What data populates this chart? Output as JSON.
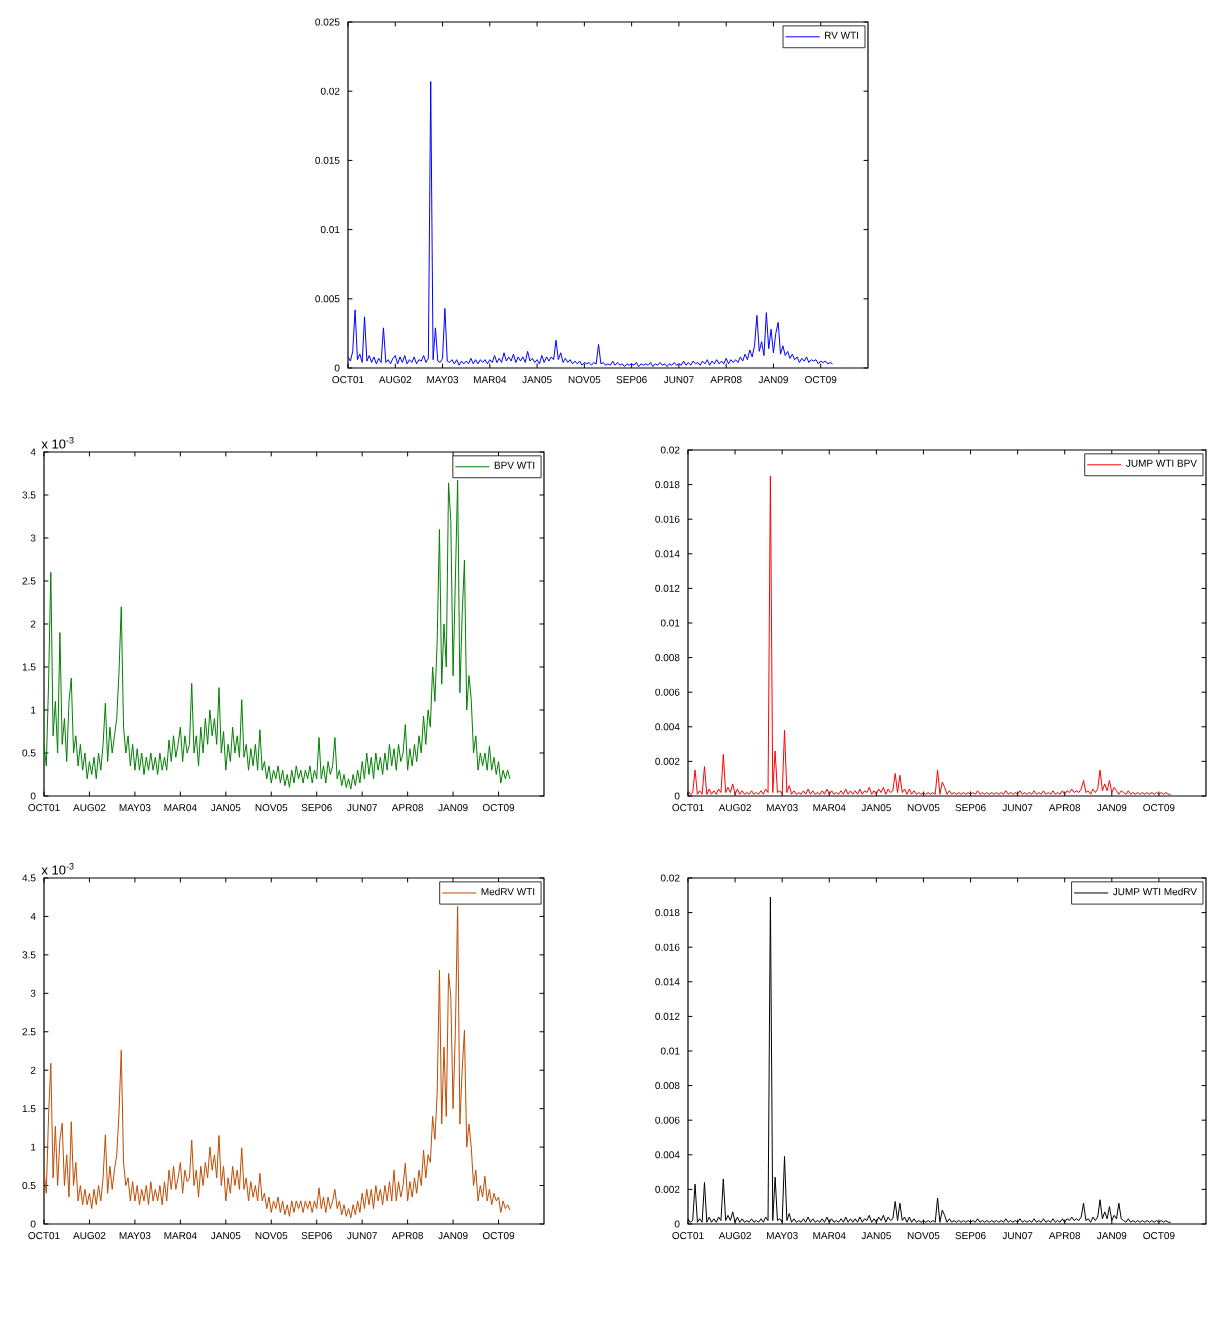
{
  "chart_data": [
    {
      "type": "line",
      "categories": [
        "OCT01",
        null,
        null,
        null,
        null,
        null,
        null,
        null,
        null,
        null,
        null,
        null,
        null,
        null,
        null,
        null,
        null,
        null,
        null,
        null,
        "AUG02",
        null,
        null,
        null,
        null,
        null,
        null,
        null,
        null,
        null,
        null,
        null,
        null,
        null,
        null,
        null,
        null,
        null,
        null,
        null,
        "MAY03",
        null,
        null,
        null,
        null,
        null,
        null,
        null,
        null,
        null,
        null,
        null,
        null,
        null,
        null,
        null,
        null,
        null,
        null,
        null,
        "MAR04",
        null,
        null,
        null,
        null,
        null,
        null,
        null,
        null,
        null,
        null,
        null,
        null,
        null,
        null,
        null,
        null,
        null,
        null,
        null,
        "JAN05",
        null,
        null,
        null,
        null,
        null,
        null,
        null,
        null,
        null,
        null,
        null,
        null,
        null,
        null,
        null,
        null,
        null,
        null,
        null,
        "NOV05",
        null,
        null,
        null,
        null,
        null,
        null,
        null,
        null,
        null,
        null,
        null,
        null,
        null,
        null,
        null,
        null,
        null,
        null,
        null,
        "SEP06",
        null,
        null,
        null,
        null,
        null,
        null,
        null,
        null,
        null,
        null,
        null,
        null,
        null,
        null,
        null,
        null,
        null,
        null,
        null,
        "JUN07",
        null,
        null,
        null,
        null,
        null,
        null,
        null,
        null,
        null,
        null,
        null,
        null,
        null,
        null,
        null,
        null,
        null,
        null,
        null,
        "APR08",
        null,
        null,
        null,
        null,
        null,
        null,
        null,
        null,
        null,
        null,
        null,
        null,
        null,
        null,
        null,
        null,
        null,
        null,
        null,
        "JAN09",
        null,
        null,
        null,
        null,
        null,
        null,
        null,
        null,
        null,
        null,
        null,
        null,
        null,
        null,
        null,
        null,
        null,
        null,
        null,
        "OCT09",
        null,
        null,
        null,
        null,
        null,
        null,
        null,
        null,
        null,
        null,
        null,
        null,
        null,
        null,
        null,
        null,
        null,
        null,
        null,
        null
      ],
      "series": [
        {
          "name": "RV WTI",
          "color": "#0000ff",
          "values": [
            0.0008,
            0.0005,
            0.0012,
            0.0042,
            0.0006,
            0.001,
            0.0004,
            0.0037,
            0.0005,
            0.0009,
            0.0004,
            0.0008,
            0.0003,
            0.0007,
            0.0004,
            0.0029,
            0.0004,
            0.0006,
            0.0003,
            0.0007,
            0.0009,
            0.0003,
            0.0008,
            0.0004,
            0.0009,
            0.0003,
            0.0006,
            0.0004,
            0.0008,
            0.0003,
            0.0006,
            0.0005,
            0.0009,
            0.0004,
            0.0007,
            0.0207,
            0.0006,
            0.0029,
            0.0005,
            0.0004,
            0.0007,
            0.0043,
            0.0005,
            0.0004,
            0.0006,
            0.0003,
            0.0006,
            0.0002,
            0.0005,
            0.0003,
            0.0005,
            0.0003,
            0.0007,
            0.0003,
            0.0006,
            0.0003,
            0.0006,
            0.0004,
            0.0006,
            0.0003,
            0.0006,
            0.0004,
            0.0009,
            0.0004,
            0.0007,
            0.0004,
            0.0011,
            0.0005,
            0.0008,
            0.0005,
            0.001,
            0.0004,
            0.0008,
            0.0005,
            0.0008,
            0.0004,
            0.0012,
            0.0005,
            0.0007,
            0.0004,
            0.0006,
            0.0003,
            0.0009,
            0.0004,
            0.0008,
            0.0005,
            0.0008,
            0.0006,
            0.002,
            0.0006,
            0.0011,
            0.0004,
            0.0007,
            0.0004,
            0.0006,
            0.0003,
            0.0005,
            0.0003,
            0.0005,
            0.0002,
            0.0004,
            0.0003,
            0.0004,
            0.0002,
            0.0004,
            0.0003,
            0.0017,
            0.0003,
            0.0004,
            0.0002,
            0.0003,
            0.0002,
            0.0005,
            0.0002,
            0.0004,
            0.0002,
            0.0003,
            0.0001,
            0.0003,
            0.0002,
            0.0003,
            0.0002,
            0.0004,
            0.0001,
            0.0003,
            0.0002,
            0.0003,
            0.0002,
            0.0004,
            0.0001,
            0.0003,
            0.0002,
            0.0004,
            0.0002,
            0.0003,
            0.0001,
            0.0003,
            0.0002,
            0.0004,
            0.0002,
            0.0003,
            0.0002,
            0.0005,
            0.0002,
            0.0004,
            0.0002,
            0.0005,
            0.0003,
            0.0004,
            0.0002,
            0.0005,
            0.0003,
            0.0006,
            0.0002,
            0.0005,
            0.0003,
            0.0006,
            0.0003,
            0.0005,
            0.0003,
            0.0007,
            0.0003,
            0.0006,
            0.0004,
            0.0006,
            0.0004,
            0.0008,
            0.0005,
            0.001,
            0.0006,
            0.0013,
            0.0008,
            0.0016,
            0.0038,
            0.0012,
            0.0019,
            0.0009,
            0.004,
            0.0014,
            0.0028,
            0.0011,
            0.0025,
            0.0033,
            0.001,
            0.0016,
            0.0009,
            0.0012,
            0.0007,
            0.001,
            0.0006,
            0.0008,
            0.0004,
            0.0007,
            0.0005,
            0.0008,
            0.0004,
            0.0006,
            0.0005,
            0.0006,
            0.0003,
            0.0005,
            0.0004,
            0.0005,
            0.0003,
            0.0004,
            0.0003,
            null,
            null,
            null,
            null,
            null,
            null,
            null,
            null,
            null,
            null,
            null,
            null,
            null,
            null,
            null
          ]
        }
      ],
      "ylim": [
        0,
        0.025
      ],
      "yticks": [
        0,
        0.005,
        0.01,
        0.015,
        0.02,
        0.025
      ],
      "legend": "top right"
    },
    {
      "type": "line",
      "categories": [
        "OCT01",
        null,
        null,
        null,
        null,
        null,
        null,
        null,
        null,
        null,
        null,
        null,
        null,
        null,
        null,
        null,
        null,
        null,
        null,
        null,
        "AUG02",
        null,
        null,
        null,
        null,
        null,
        null,
        null,
        null,
        null,
        null,
        null,
        null,
        null,
        null,
        null,
        null,
        null,
        null,
        null,
        "MAY03",
        null,
        null,
        null,
        null,
        null,
        null,
        null,
        null,
        null,
        null,
        null,
        null,
        null,
        null,
        null,
        null,
        null,
        null,
        null,
        "MAR04",
        null,
        null,
        null,
        null,
        null,
        null,
        null,
        null,
        null,
        null,
        null,
        null,
        null,
        null,
        null,
        null,
        null,
        null,
        null,
        "JAN05",
        null,
        null,
        null,
        null,
        null,
        null,
        null,
        null,
        null,
        null,
        null,
        null,
        null,
        null,
        null,
        null,
        null,
        null,
        null,
        "NOV05",
        null,
        null,
        null,
        null,
        null,
        null,
        null,
        null,
        null,
        null,
        null,
        null,
        null,
        null,
        null,
        null,
        null,
        null,
        null,
        "SEP06",
        null,
        null,
        null,
        null,
        null,
        null,
        null,
        null,
        null,
        null,
        null,
        null,
        null,
        null,
        null,
        null,
        null,
        null,
        null,
        "JUN07",
        null,
        null,
        null,
        null,
        null,
        null,
        null,
        null,
        null,
        null,
        null,
        null,
        null,
        null,
        null,
        null,
        null,
        null,
        null,
        "APR08",
        null,
        null,
        null,
        null,
        null,
        null,
        null,
        null,
        null,
        null,
        null,
        null,
        null,
        null,
        null,
        null,
        null,
        null,
        null,
        "JAN09",
        null,
        null,
        null,
        null,
        null,
        null,
        null,
        null,
        null,
        null,
        null,
        null,
        null,
        null,
        null,
        null,
        null,
        null,
        null,
        "OCT09",
        null,
        null,
        null,
        null,
        null,
        null,
        null,
        null,
        null,
        null,
        null,
        null,
        null,
        null,
        null,
        null,
        null,
        null,
        null,
        null
      ],
      "series": [
        {
          "name": "BPV WTI",
          "color": "#008000",
          "values": [
            0.6,
            0.35,
            1.3,
            2.6,
            0.7,
            1.1,
            0.5,
            1.9,
            0.6,
            0.9,
            0.4,
            1.1,
            1.37,
            0.5,
            0.7,
            0.35,
            0.6,
            0.3,
            0.5,
            0.2,
            0.4,
            0.25,
            0.45,
            0.2,
            0.5,
            0.3,
            0.6,
            1.08,
            0.4,
            0.8,
            0.5,
            0.7,
            0.9,
            1.44,
            2.2,
            0.8,
            0.5,
            0.7,
            0.35,
            0.6,
            0.3,
            0.55,
            0.3,
            0.5,
            0.25,
            0.45,
            0.3,
            0.5,
            0.3,
            0.45,
            0.25,
            0.5,
            0.3,
            0.45,
            0.3,
            0.65,
            0.4,
            0.7,
            0.45,
            0.6,
            0.8,
            0.4,
            0.7,
            0.5,
            0.6,
            1.31,
            0.5,
            0.7,
            0.35,
            0.8,
            0.5,
            0.9,
            0.6,
            1.0,
            0.7,
            0.9,
            0.6,
            1.26,
            0.5,
            0.75,
            0.3,
            0.6,
            0.4,
            0.8,
            0.5,
            0.7,
            0.45,
            1.12,
            0.45,
            0.6,
            0.3,
            0.55,
            0.35,
            0.6,
            0.3,
            0.77,
            0.3,
            0.4,
            0.2,
            0.35,
            0.15,
            0.3,
            0.2,
            0.35,
            0.15,
            0.3,
            0.12,
            0.25,
            0.1,
            0.3,
            0.15,
            0.35,
            0.2,
            0.3,
            0.15,
            0.3,
            0.2,
            0.35,
            0.15,
            0.3,
            0.2,
            0.68,
            0.2,
            0.35,
            0.15,
            0.4,
            0.25,
            0.35,
            0.68,
            0.2,
            0.3,
            0.12,
            0.25,
            0.1,
            0.2,
            0.08,
            0.25,
            0.12,
            0.3,
            0.15,
            0.4,
            0.2,
            0.5,
            0.25,
            0.45,
            0.2,
            0.5,
            0.3,
            0.45,
            0.25,
            0.5,
            0.3,
            0.6,
            0.35,
            0.55,
            0.3,
            0.6,
            0.4,
            0.5,
            0.83,
            0.3,
            0.55,
            0.35,
            0.6,
            0.4,
            0.7,
            0.5,
            0.93,
            0.6,
            1.0,
            0.8,
            1.5,
            1.1,
            1.8,
            3.1,
            1.3,
            2.0,
            1.5,
            3.64,
            3.2,
            1.4,
            2.5,
            3.67,
            1.2,
            2.1,
            2.74,
            1.0,
            1.4,
            1.12,
            0.5,
            0.7,
            0.3,
            0.5,
            0.35,
            0.5,
            0.3,
            0.58,
            0.3,
            0.45,
            0.25,
            0.4,
            0.15,
            0.3,
            0.2,
            0.3,
            0.2,
            null,
            null,
            null,
            null,
            null,
            null,
            null,
            null,
            null,
            null,
            null,
            null,
            null,
            null,
            null
          ]
        }
      ],
      "ylim": [
        0,
        4
      ],
      "yticks": [
        0,
        0.5,
        1,
        1.5,
        2,
        2.5,
        3,
        3.5,
        4
      ],
      "legend": "top right",
      "annotations": [
        "x 10$^{-3}$"
      ]
    },
    {
      "type": "line",
      "categories": [
        "OCT01",
        null,
        null,
        null,
        null,
        null,
        null,
        null,
        null,
        null,
        null,
        null,
        null,
        null,
        null,
        null,
        null,
        null,
        null,
        null,
        "AUG02",
        null,
        null,
        null,
        null,
        null,
        null,
        null,
        null,
        null,
        null,
        null,
        null,
        null,
        null,
        null,
        null,
        null,
        null,
        null,
        "MAY03",
        null,
        null,
        null,
        null,
        null,
        null,
        null,
        null,
        null,
        null,
        null,
        null,
        null,
        null,
        null,
        null,
        null,
        null,
        null,
        "MAR04",
        null,
        null,
        null,
        null,
        null,
        null,
        null,
        null,
        null,
        null,
        null,
        null,
        null,
        null,
        null,
        null,
        null,
        null,
        null,
        "JAN05",
        null,
        null,
        null,
        null,
        null,
        null,
        null,
        null,
        null,
        null,
        null,
        null,
        null,
        null,
        null,
        null,
        null,
        null,
        null,
        "NOV05",
        null,
        null,
        null,
        null,
        null,
        null,
        null,
        null,
        null,
        null,
        null,
        null,
        null,
        null,
        null,
        null,
        null,
        null,
        null,
        "SEP06",
        null,
        null,
        null,
        null,
        null,
        null,
        null,
        null,
        null,
        null,
        null,
        null,
        null,
        null,
        null,
        null,
        null,
        null,
        null,
        "JUN07",
        null,
        null,
        null,
        null,
        null,
        null,
        null,
        null,
        null,
        null,
        null,
        null,
        null,
        null,
        null,
        null,
        null,
        null,
        null,
        "APR08",
        null,
        null,
        null,
        null,
        null,
        null,
        null,
        null,
        null,
        null,
        null,
        null,
        null,
        null,
        null,
        null,
        null,
        null,
        null,
        "JAN09",
        null,
        null,
        null,
        null,
        null,
        null,
        null,
        null,
        null,
        null,
        null,
        null,
        null,
        null,
        null,
        null,
        null,
        null,
        null,
        "OCT09",
        null,
        null,
        null,
        null,
        null,
        null,
        null,
        null,
        null,
        null,
        null,
        null,
        null,
        null,
        null,
        null,
        null,
        null,
        null,
        null
      ],
      "series": [
        {
          "name": "JUMP WTI BPV",
          "color": "#ff0000",
          "values": [
            0.0003,
            0.0001,
            0.0002,
            0.0015,
            0.0001,
            0.0003,
            0.0001,
            0.0017,
            0.0001,
            0.0004,
            0.0001,
            0.0003,
            0.0001,
            0.0004,
            0.0002,
            0.0024,
            0.0002,
            0.0005,
            0.0002,
            0.0007,
            0.0001,
            0.0004,
            0.0001,
            0.0003,
            0.0001,
            0.0002,
            0.0001,
            0.0003,
            0.0001,
            0.0002,
            0.0001,
            0.0003,
            0.0001,
            0.0004,
            0.0002,
            0.0185,
            0.0002,
            0.0026,
            0.0002,
            0.0003,
            0.0001,
            0.0038,
            0.0002,
            0.0006,
            0.0001,
            0.0003,
            0.0001,
            0.0002,
            0.0001,
            0.0003,
            0.0001,
            0.0004,
            0.0001,
            0.0003,
            0.0001,
            0.0002,
            0.0001,
            0.0003,
            0.0001,
            0.0004,
            0.0001,
            0.0003,
            0.0001,
            0.0002,
            0.0001,
            0.0003,
            0.0001,
            0.0004,
            0.0001,
            0.0003,
            0.0001,
            0.0003,
            0.0001,
            0.0004,
            0.0001,
            0.0003,
            0.0002,
            0.0005,
            0.0001,
            0.0003,
            0.0001,
            0.0004,
            0.0002,
            0.0005,
            0.0001,
            0.0004,
            0.0002,
            0.0003,
            0.0013,
            0.0002,
            0.0012,
            0.0002,
            0.0004,
            0.0001,
            0.0004,
            0.0001,
            0.0003,
            0.0001,
            0.0002,
            0.0001,
            0.0002,
            0.0001,
            0.0002,
            0.0001,
            0.0002,
            0.0001,
            0.0015,
            0.0001,
            0.0008,
            0.0005,
            0.0001,
            0.0003,
            0.0001,
            0.0002,
            0.0001,
            0.0002,
            0.0001,
            0.0002,
            0.0001,
            0.0002,
            0.0001,
            0.0002,
            0.0001,
            0.0003,
            0.0001,
            0.0002,
            0.0001,
            0.0002,
            0.0001,
            0.0002,
            0.0001,
            0.0002,
            0.0001,
            0.0002,
            0.0001,
            0.0003,
            0.0001,
            0.0002,
            0.0001,
            0.0002,
            0.0001,
            0.0003,
            0.0001,
            0.0002,
            0.0001,
            0.0002,
            0.0001,
            0.0003,
            0.0001,
            0.0002,
            0.0001,
            0.0003,
            0.0001,
            0.0002,
            0.0001,
            0.0003,
            0.0001,
            0.0002,
            0.0001,
            0.0003,
            0.0001,
            0.0003,
            0.0002,
            0.0004,
            0.0002,
            0.0003,
            0.0002,
            0.0004,
            0.0009,
            0.0002,
            0.0003,
            0.0001,
            0.0004,
            0.0002,
            0.0004,
            0.0015,
            0.0003,
            0.0007,
            0.0003,
            0.0009,
            0.0002,
            0.0005,
            0.0003,
            0.0001,
            0.0003,
            0.0002,
            0.0001,
            0.0003,
            0.0001,
            0.0002,
            0.0001,
            0.0002,
            0.0001,
            0.0002,
            0.0001,
            0.0002,
            0.0001,
            0.0002,
            0.0001,
            0.0002,
            0.0001,
            0.0002,
            0.0001,
            0.0002,
            0.0001,
            0.0001,
            null,
            null,
            null,
            null,
            null,
            null,
            null,
            null,
            null,
            null,
            null,
            null,
            null,
            null,
            null
          ]
        }
      ],
      "ylim": [
        0,
        0.02
      ],
      "yticks": [
        0,
        0.002,
        0.004,
        0.006,
        0.008,
        0.01,
        0.012,
        0.014,
        0.016,
        0.018,
        0.02
      ],
      "legend": "top right"
    },
    {
      "type": "line",
      "categories": [
        "OCT01",
        null,
        null,
        null,
        null,
        null,
        null,
        null,
        null,
        null,
        null,
        null,
        null,
        null,
        null,
        null,
        null,
        null,
        null,
        null,
        "AUG02",
        null,
        null,
        null,
        null,
        null,
        null,
        null,
        null,
        null,
        null,
        null,
        null,
        null,
        null,
        null,
        null,
        null,
        null,
        null,
        "MAY03",
        null,
        null,
        null,
        null,
        null,
        null,
        null,
        null,
        null,
        null,
        null,
        null,
        null,
        null,
        null,
        null,
        null,
        null,
        null,
        "MAR04",
        null,
        null,
        null,
        null,
        null,
        null,
        null,
        null,
        null,
        null,
        null,
        null,
        null,
        null,
        null,
        null,
        null,
        null,
        null,
        "JAN05",
        null,
        null,
        null,
        null,
        null,
        null,
        null,
        null,
        null,
        null,
        null,
        null,
        null,
        null,
        null,
        null,
        null,
        null,
        null,
        "NOV05",
        null,
        null,
        null,
        null,
        null,
        null,
        null,
        null,
        null,
        null,
        null,
        null,
        null,
        null,
        null,
        null,
        null,
        null,
        null,
        "SEP06",
        null,
        null,
        null,
        null,
        null,
        null,
        null,
        null,
        null,
        null,
        null,
        null,
        null,
        null,
        null,
        null,
        null,
        null,
        null,
        "JUN07",
        null,
        null,
        null,
        null,
        null,
        null,
        null,
        null,
        null,
        null,
        null,
        null,
        null,
        null,
        null,
        null,
        null,
        null,
        null,
        "APR08",
        null,
        null,
        null,
        null,
        null,
        null,
        null,
        null,
        null,
        null,
        null,
        null,
        null,
        null,
        null,
        null,
        null,
        null,
        null,
        "JAN09",
        null,
        null,
        null,
        null,
        null,
        null,
        null,
        null,
        null,
        null,
        null,
        null,
        null,
        null,
        null,
        null,
        null,
        null,
        null,
        "OCT09",
        null,
        null,
        null,
        null,
        null,
        null,
        null,
        null,
        null,
        null,
        null,
        null,
        null,
        null,
        null,
        null,
        null,
        null,
        null,
        null
      ],
      "series": [
        {
          "name": "MedRV WTI",
          "color": "#c04a00",
          "values": [
            0.7,
            0.4,
            1.4,
            2.09,
            0.6,
            1.27,
            0.5,
            1.1,
            1.31,
            0.5,
            0.9,
            0.35,
            1.33,
            0.5,
            0.8,
            0.3,
            0.5,
            0.25,
            0.45,
            0.25,
            0.4,
            0.2,
            0.45,
            0.25,
            0.5,
            0.3,
            0.6,
            1.16,
            0.4,
            0.75,
            0.45,
            0.7,
            0.9,
            1.44,
            2.26,
            0.8,
            0.5,
            0.6,
            0.3,
            0.55,
            0.3,
            0.5,
            0.25,
            0.45,
            0.3,
            0.5,
            0.25,
            0.55,
            0.3,
            0.45,
            0.3,
            0.5,
            0.25,
            0.55,
            0.3,
            0.7,
            0.45,
            0.75,
            0.45,
            0.6,
            0.8,
            0.4,
            0.7,
            0.55,
            0.6,
            1.09,
            0.5,
            0.7,
            0.35,
            0.75,
            0.5,
            0.8,
            0.6,
            1.0,
            0.7,
            0.9,
            0.6,
            1.15,
            0.5,
            0.75,
            0.3,
            0.6,
            0.4,
            0.75,
            0.5,
            0.7,
            0.45,
            0.99,
            0.45,
            0.6,
            0.3,
            0.55,
            0.35,
            0.5,
            0.3,
            0.66,
            0.3,
            0.4,
            0.2,
            0.35,
            0.15,
            0.3,
            0.2,
            0.35,
            0.15,
            0.3,
            0.12,
            0.25,
            0.1,
            0.3,
            0.15,
            0.3,
            0.2,
            0.3,
            0.15,
            0.3,
            0.2,
            0.3,
            0.15,
            0.3,
            0.2,
            0.47,
            0.2,
            0.35,
            0.15,
            0.35,
            0.2,
            0.3,
            0.45,
            0.2,
            0.3,
            0.12,
            0.25,
            0.1,
            0.2,
            0.08,
            0.25,
            0.12,
            0.3,
            0.15,
            0.4,
            0.2,
            0.45,
            0.25,
            0.45,
            0.2,
            0.5,
            0.3,
            0.45,
            0.25,
            0.5,
            0.3,
            0.55,
            0.3,
            0.7,
            0.3,
            0.55,
            0.35,
            0.5,
            0.79,
            0.3,
            0.55,
            0.35,
            0.6,
            0.4,
            0.7,
            0.5,
            0.96,
            0.6,
            0.9,
            0.8,
            1.4,
            1.1,
            1.7,
            3.3,
            1.3,
            2.3,
            1.4,
            3.26,
            2.96,
            1.5,
            2.5,
            4.13,
            1.3,
            2.0,
            2.52,
            1.0,
            1.3,
            1.0,
            0.5,
            0.7,
            0.3,
            0.5,
            0.35,
            0.62,
            0.3,
            0.45,
            0.25,
            0.4,
            0.3,
            0.35,
            0.15,
            0.3,
            0.2,
            0.25,
            0.18,
            null,
            null,
            null,
            null,
            null,
            null,
            null,
            null,
            null,
            null,
            null,
            null,
            null,
            null,
            null
          ]
        }
      ],
      "ylim": [
        0,
        4.5
      ],
      "yticks": [
        0,
        0.5,
        1,
        1.5,
        2,
        2.5,
        3,
        3.5,
        4,
        4.5
      ],
      "legend": "top right",
      "annotations": [
        "x 10$^{-3}$"
      ]
    },
    {
      "type": "line",
      "categories": [
        "OCT01",
        null,
        null,
        null,
        null,
        null,
        null,
        null,
        null,
        null,
        null,
        null,
        null,
        null,
        null,
        null,
        null,
        null,
        null,
        null,
        "AUG02",
        null,
        null,
        null,
        null,
        null,
        null,
        null,
        null,
        null,
        null,
        null,
        null,
        null,
        null,
        null,
        null,
        null,
        null,
        null,
        "MAY03",
        null,
        null,
        null,
        null,
        null,
        null,
        null,
        null,
        null,
        null,
        null,
        null,
        null,
        null,
        null,
        null,
        null,
        null,
        null,
        "MAR04",
        null,
        null,
        null,
        null,
        null,
        null,
        null,
        null,
        null,
        null,
        null,
        null,
        null,
        null,
        null,
        null,
        null,
        null,
        null,
        "JAN05",
        null,
        null,
        null,
        null,
        null,
        null,
        null,
        null,
        null,
        null,
        null,
        null,
        null,
        null,
        null,
        null,
        null,
        null,
        null,
        "NOV05",
        null,
        null,
        null,
        null,
        null,
        null,
        null,
        null,
        null,
        null,
        null,
        null,
        null,
        null,
        null,
        null,
        null,
        null,
        null,
        "SEP06",
        null,
        null,
        null,
        null,
        null,
        null,
        null,
        null,
        null,
        null,
        null,
        null,
        null,
        null,
        null,
        null,
        null,
        null,
        null,
        "JUN07",
        null,
        null,
        null,
        null,
        null,
        null,
        null,
        null,
        null,
        null,
        null,
        null,
        null,
        null,
        null,
        null,
        null,
        null,
        null,
        "APR08",
        null,
        null,
        null,
        null,
        null,
        null,
        null,
        null,
        null,
        null,
        null,
        null,
        null,
        null,
        null,
        null,
        null,
        null,
        null,
        "JAN09",
        null,
        null,
        null,
        null,
        null,
        null,
        null,
        null,
        null,
        null,
        null,
        null,
        null,
        null,
        null,
        null,
        null,
        null,
        null,
        "OCT09",
        null,
        null,
        null,
        null,
        null,
        null,
        null,
        null,
        null,
        null,
        null,
        null,
        null,
        null,
        null,
        null,
        null,
        null,
        null,
        null
      ],
      "series": [
        {
          "name": "JUMP WTI MedRV",
          "color": "#000000",
          "values": [
            0.0003,
            0.0001,
            0.0002,
            0.0023,
            0.0001,
            0.0003,
            0.0001,
            0.0024,
            0.0001,
            0.0004,
            0.0001,
            0.0003,
            0.0001,
            0.0004,
            0.0002,
            0.0026,
            0.0002,
            0.0005,
            0.0002,
            0.0007,
            0.0001,
            0.0004,
            0.0001,
            0.0003,
            0.0001,
            0.0002,
            0.0001,
            0.0003,
            0.0001,
            0.0002,
            0.0001,
            0.0003,
            0.0001,
            0.0004,
            0.0002,
            0.0189,
            0.0002,
            0.0027,
            0.0002,
            0.0003,
            0.0001,
            0.0039,
            0.0002,
            0.0006,
            0.0001,
            0.0003,
            0.0001,
            0.0002,
            0.0001,
            0.0003,
            0.0001,
            0.0004,
            0.0001,
            0.0003,
            0.0001,
            0.0002,
            0.0001,
            0.0003,
            0.0001,
            0.0004,
            0.0001,
            0.0003,
            0.0001,
            0.0002,
            0.0001,
            0.0003,
            0.0001,
            0.0004,
            0.0001,
            0.0003,
            0.0001,
            0.0003,
            0.0001,
            0.0004,
            0.0001,
            0.0003,
            0.0002,
            0.0005,
            0.0001,
            0.0003,
            0.0001,
            0.0004,
            0.0002,
            0.0005,
            0.0001,
            0.0004,
            0.0002,
            0.0003,
            0.0013,
            0.0002,
            0.0012,
            0.0002,
            0.0004,
            0.0001,
            0.0004,
            0.0001,
            0.0003,
            0.0001,
            0.0002,
            0.0001,
            0.0002,
            0.0001,
            0.0002,
            0.0001,
            0.0002,
            0.0001,
            0.0015,
            0.0001,
            0.0008,
            0.0005,
            0.0001,
            0.0003,
            0.0001,
            0.0002,
            0.0001,
            0.0002,
            0.0001,
            0.0002,
            0.0001,
            0.0002,
            0.0001,
            0.0002,
            0.0001,
            0.0003,
            0.0001,
            0.0002,
            0.0001,
            0.0002,
            0.0001,
            0.0002,
            0.0001,
            0.0002,
            0.0001,
            0.0002,
            0.0001,
            0.0003,
            0.0001,
            0.0002,
            0.0001,
            0.0002,
            0.0001,
            0.0003,
            0.0001,
            0.0002,
            0.0001,
            0.0002,
            0.0001,
            0.0003,
            0.0001,
            0.0002,
            0.0001,
            0.0003,
            0.0001,
            0.0002,
            0.0001,
            0.0003,
            0.0001,
            0.0002,
            0.0001,
            0.0003,
            0.0001,
            0.0003,
            0.0002,
            0.0004,
            0.0002,
            0.0003,
            0.0002,
            0.0004,
            0.0012,
            0.0002,
            0.0003,
            0.0001,
            0.0004,
            0.0002,
            0.0004,
            0.0014,
            0.0003,
            0.0007,
            0.0003,
            0.001,
            0.0002,
            0.0005,
            0.0003,
            0.0012,
            0.0003,
            0.0002,
            0.0001,
            0.0003,
            0.0001,
            0.0002,
            0.0001,
            0.0002,
            0.0001,
            0.0002,
            0.0001,
            0.0002,
            0.0001,
            0.0002,
            0.0001,
            0.0002,
            0.0001,
            0.0002,
            0.0001,
            0.0002,
            0.0001,
            0.0001,
            null,
            null,
            null,
            null,
            null,
            null,
            null,
            null,
            null,
            null,
            null,
            null,
            null,
            null,
            null
          ]
        }
      ],
      "ylim": [
        0,
        0.02
      ],
      "yticks": [
        0,
        0.002,
        0.004,
        0.006,
        0.008,
        0.01,
        0.012,
        0.014,
        0.016,
        0.018,
        0.02
      ],
      "legend": "top right"
    }
  ]
}
